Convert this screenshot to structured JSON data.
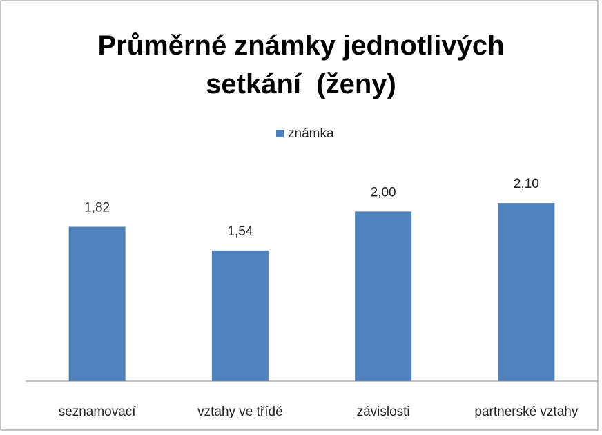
{
  "chart_data": {
    "type": "bar",
    "title": "Průměrné známky jednotlivých setkání  (ženy)",
    "categories": [
      "seznamovací",
      "vztahy ve třídě",
      "závislosti",
      "partnerské vztahy"
    ],
    "series": [
      {
        "name": "známka",
        "color": "#4f81bd",
        "values": [
          1.82,
          1.54,
          2.0,
          2.1
        ],
        "value_labels": [
          "1,82",
          "1,54",
          "2,00",
          "2,10"
        ]
      }
    ],
    "ylim": [
      0,
      2.5
    ],
    "legend": "top"
  }
}
